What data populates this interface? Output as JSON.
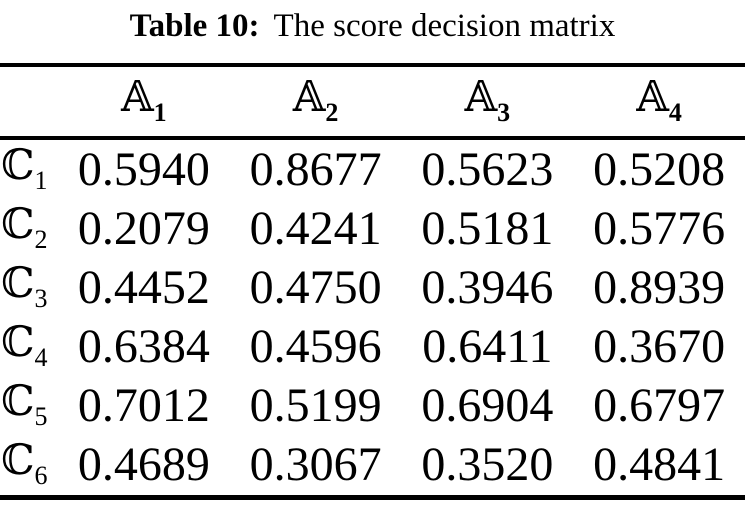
{
  "title": {
    "label": "Table 10:",
    "caption": "The score decision matrix"
  },
  "table": {
    "columns": [
      {
        "base": "𝔸",
        "sub": "1"
      },
      {
        "base": "𝔸",
        "sub": "2"
      },
      {
        "base": "𝔸",
        "sub": "3"
      },
      {
        "base": "𝔸",
        "sub": "4"
      }
    ],
    "rows": [
      {
        "label": {
          "base": "ℂ",
          "sub": "1"
        },
        "values": [
          "0.5940",
          "0.8677",
          "0.5623",
          "0.5208"
        ]
      },
      {
        "label": {
          "base": "ℂ",
          "sub": "2"
        },
        "values": [
          "0.2079",
          "0.4241",
          "0.5181",
          "0.5776"
        ]
      },
      {
        "label": {
          "base": "ℂ",
          "sub": "3"
        },
        "values": [
          "0.4452",
          "0.4750",
          "0.3946",
          "0.8939"
        ]
      },
      {
        "label": {
          "base": "ℂ",
          "sub": "4"
        },
        "values": [
          "0.6384",
          "0.4596",
          "0.6411",
          "0.3670"
        ]
      },
      {
        "label": {
          "base": "ℂ",
          "sub": "5"
        },
        "values": [
          "0.7012",
          "0.5199",
          "0.6904",
          "0.6797"
        ]
      },
      {
        "label": {
          "base": "ℂ",
          "sub": "6"
        },
        "values": [
          "0.4689",
          "0.3067",
          "0.3520",
          "0.4841"
        ]
      }
    ]
  },
  "chart_data": {
    "type": "table",
    "title": "Table 10: The score decision matrix",
    "categories": [
      "A1",
      "A2",
      "A3",
      "A4"
    ],
    "series": [
      {
        "name": "C1",
        "values": [
          0.594,
          0.8677,
          0.5623,
          0.5208
        ]
      },
      {
        "name": "C2",
        "values": [
          0.2079,
          0.4241,
          0.5181,
          0.5776
        ]
      },
      {
        "name": "C3",
        "values": [
          0.4452,
          0.475,
          0.3946,
          0.8939
        ]
      },
      {
        "name": "C4",
        "values": [
          0.6384,
          0.4596,
          0.6411,
          0.367
        ]
      },
      {
        "name": "C5",
        "values": [
          0.7012,
          0.5199,
          0.6904,
          0.6797
        ]
      },
      {
        "name": "C6",
        "values": [
          0.4689,
          0.3067,
          0.352,
          0.4841
        ]
      }
    ]
  }
}
